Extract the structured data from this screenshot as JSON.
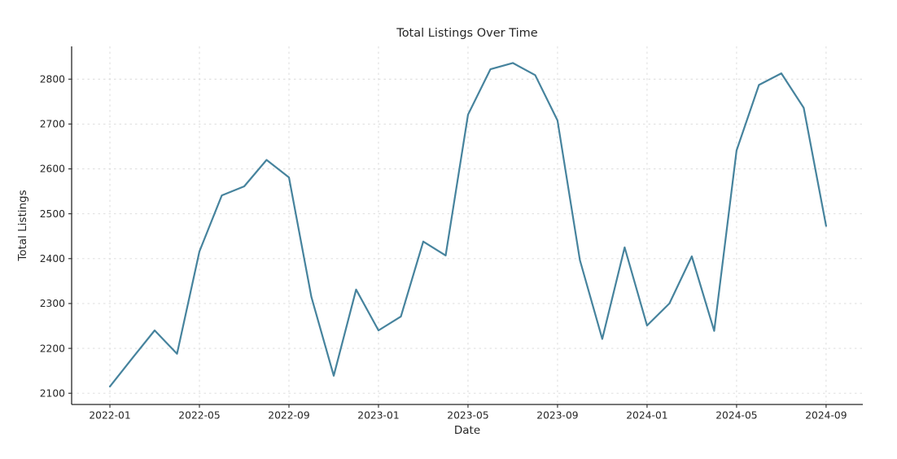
{
  "chart_data": {
    "type": "line",
    "title": "Total Listings Over Time",
    "xlabel": "Date",
    "ylabel": "Total Listings",
    "x": [
      "2022-01",
      "2022-02",
      "2022-03",
      "2022-04",
      "2022-05",
      "2022-06",
      "2022-07",
      "2022-08",
      "2022-09",
      "2022-10",
      "2022-11",
      "2022-12",
      "2023-01",
      "2023-02",
      "2023-03",
      "2023-04",
      "2023-05",
      "2023-06",
      "2023-07",
      "2023-08",
      "2023-09",
      "2023-10",
      "2023-11",
      "2023-12",
      "2024-01",
      "2024-02",
      "2024-03",
      "2024-04",
      "2024-05",
      "2024-06",
      "2024-07",
      "2024-08",
      "2024-09"
    ],
    "values": [
      2115,
      2178,
      2240,
      2188,
      2416,
      2541,
      2561,
      2620,
      2581,
      2315,
      2139,
      2331,
      2240,
      2271,
      2438,
      2407,
      2721,
      2822,
      2836,
      2809,
      2708,
      2397,
      2221,
      2425,
      2251,
      2300,
      2405,
      2239,
      2641,
      2787,
      2813,
      2736,
      2473
    ],
    "xticks": {
      "indices": [
        0,
        4,
        8,
        12,
        16,
        20,
        24,
        28,
        32
      ],
      "labels": [
        "2022-01",
        "2022-05",
        "2022-09",
        "2023-01",
        "2023-05",
        "2023-09",
        "2024-01",
        "2024-05",
        "2024-09"
      ]
    },
    "yticks": [
      2100,
      2200,
      2300,
      2400,
      2500,
      2600,
      2700,
      2800
    ],
    "ylim": [
      2075,
      2873
    ],
    "xlim_index": [
      -1.71,
      33.64
    ],
    "grid": "dashed",
    "legend": "none",
    "colors": {
      "line": "#46839d",
      "grid": "#d9d9d9",
      "spine": "#262626",
      "text": "#262626",
      "background": "#ffffff"
    }
  }
}
